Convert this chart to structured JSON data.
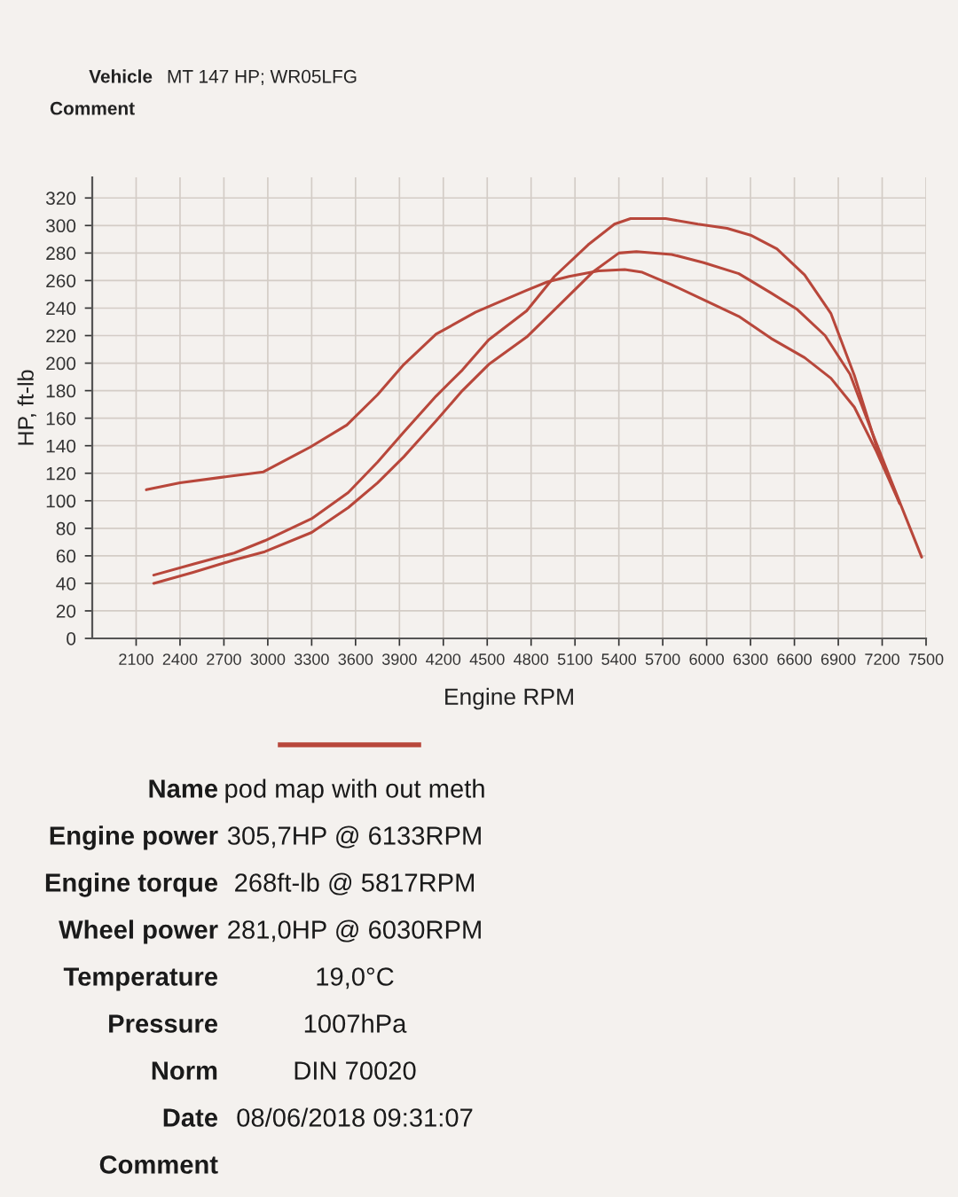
{
  "chart_data": {
    "type": "line",
    "xlabel": "Engine RPM",
    "ylabel": "HP, ft-lb",
    "xlim": [
      1800,
      7500
    ],
    "ylim": [
      0,
      335
    ],
    "xticks": [
      2100,
      2400,
      2700,
      3000,
      3300,
      3600,
      3900,
      4200,
      4500,
      4800,
      5100,
      5400,
      5700,
      6000,
      6300,
      6600,
      6900,
      7200,
      7500
    ],
    "yticks": [
      0,
      20,
      40,
      60,
      80,
      100,
      120,
      140,
      160,
      180,
      200,
      220,
      240,
      260,
      280,
      300,
      320
    ],
    "grid": true,
    "series": [
      {
        "color": "#b8473b",
        "x": [
          2220,
          2490,
          2770,
          2980,
          3300,
          3550,
          3750,
          3930,
          4150,
          4330,
          4510,
          4770,
          4960,
          5190,
          5370,
          5480,
          5720,
          5940,
          6140,
          6300,
          6480,
          6670,
          6850,
          7010,
          7160,
          7320
        ],
        "values": [
          46,
          54,
          62,
          71,
          87,
          106,
          128,
          150,
          176,
          195,
          217,
          238,
          263,
          286,
          301,
          305,
          305,
          301,
          298,
          293,
          283,
          264,
          236,
          191,
          140,
          98
        ]
      },
      {
        "color": "#b8473b",
        "x": [
          2220,
          2490,
          2770,
          2980,
          3300,
          3550,
          3750,
          3930,
          4150,
          4330,
          4510,
          4770,
          5000,
          5220,
          5400,
          5520,
          5760,
          5980,
          6220,
          6440,
          6620,
          6810,
          6980,
          7130,
          7260,
          7470
        ],
        "values": [
          40,
          48,
          57,
          63,
          77,
          95,
          113,
          132,
          158,
          180,
          199,
          219,
          243,
          266,
          280,
          281,
          279,
          273,
          265,
          251,
          239,
          220,
          192,
          150,
          115,
          59
        ]
      },
      {
        "color": "#b8473b",
        "x": [
          2170,
          2400,
          2680,
          2970,
          3290,
          3540,
          3750,
          3930,
          4150,
          4420,
          4550,
          4770,
          4910,
          5060,
          5260,
          5440,
          5560,
          5760,
          5980,
          6220,
          6440,
          6670,
          6850,
          7010,
          7160,
          7320
        ],
        "values": [
          108,
          113,
          117,
          121,
          139,
          155,
          177,
          199,
          221,
          237,
          243,
          253,
          259,
          263,
          267,
          268,
          266,
          257,
          246,
          234,
          218,
          204,
          189,
          168,
          136,
          98
        ]
      }
    ],
    "annotations": [
      "Vehicle",
      "MT 147 HP; WR05LFG",
      "Comment",
      "Name",
      "pod map with out meth",
      "Engine power",
      "305,7HP @ 6133RPM",
      "Engine torque",
      "268ft-lb @ 5817RPM",
      "Wheel power",
      "281,0HP @ 6030RPM",
      "Temperature",
      "19,0°C",
      "Pressure",
      "1007hPa",
      "Norm",
      "DIN 70020",
      "Date",
      "08/06/2018 09:31:07",
      "Comment"
    ]
  }
}
